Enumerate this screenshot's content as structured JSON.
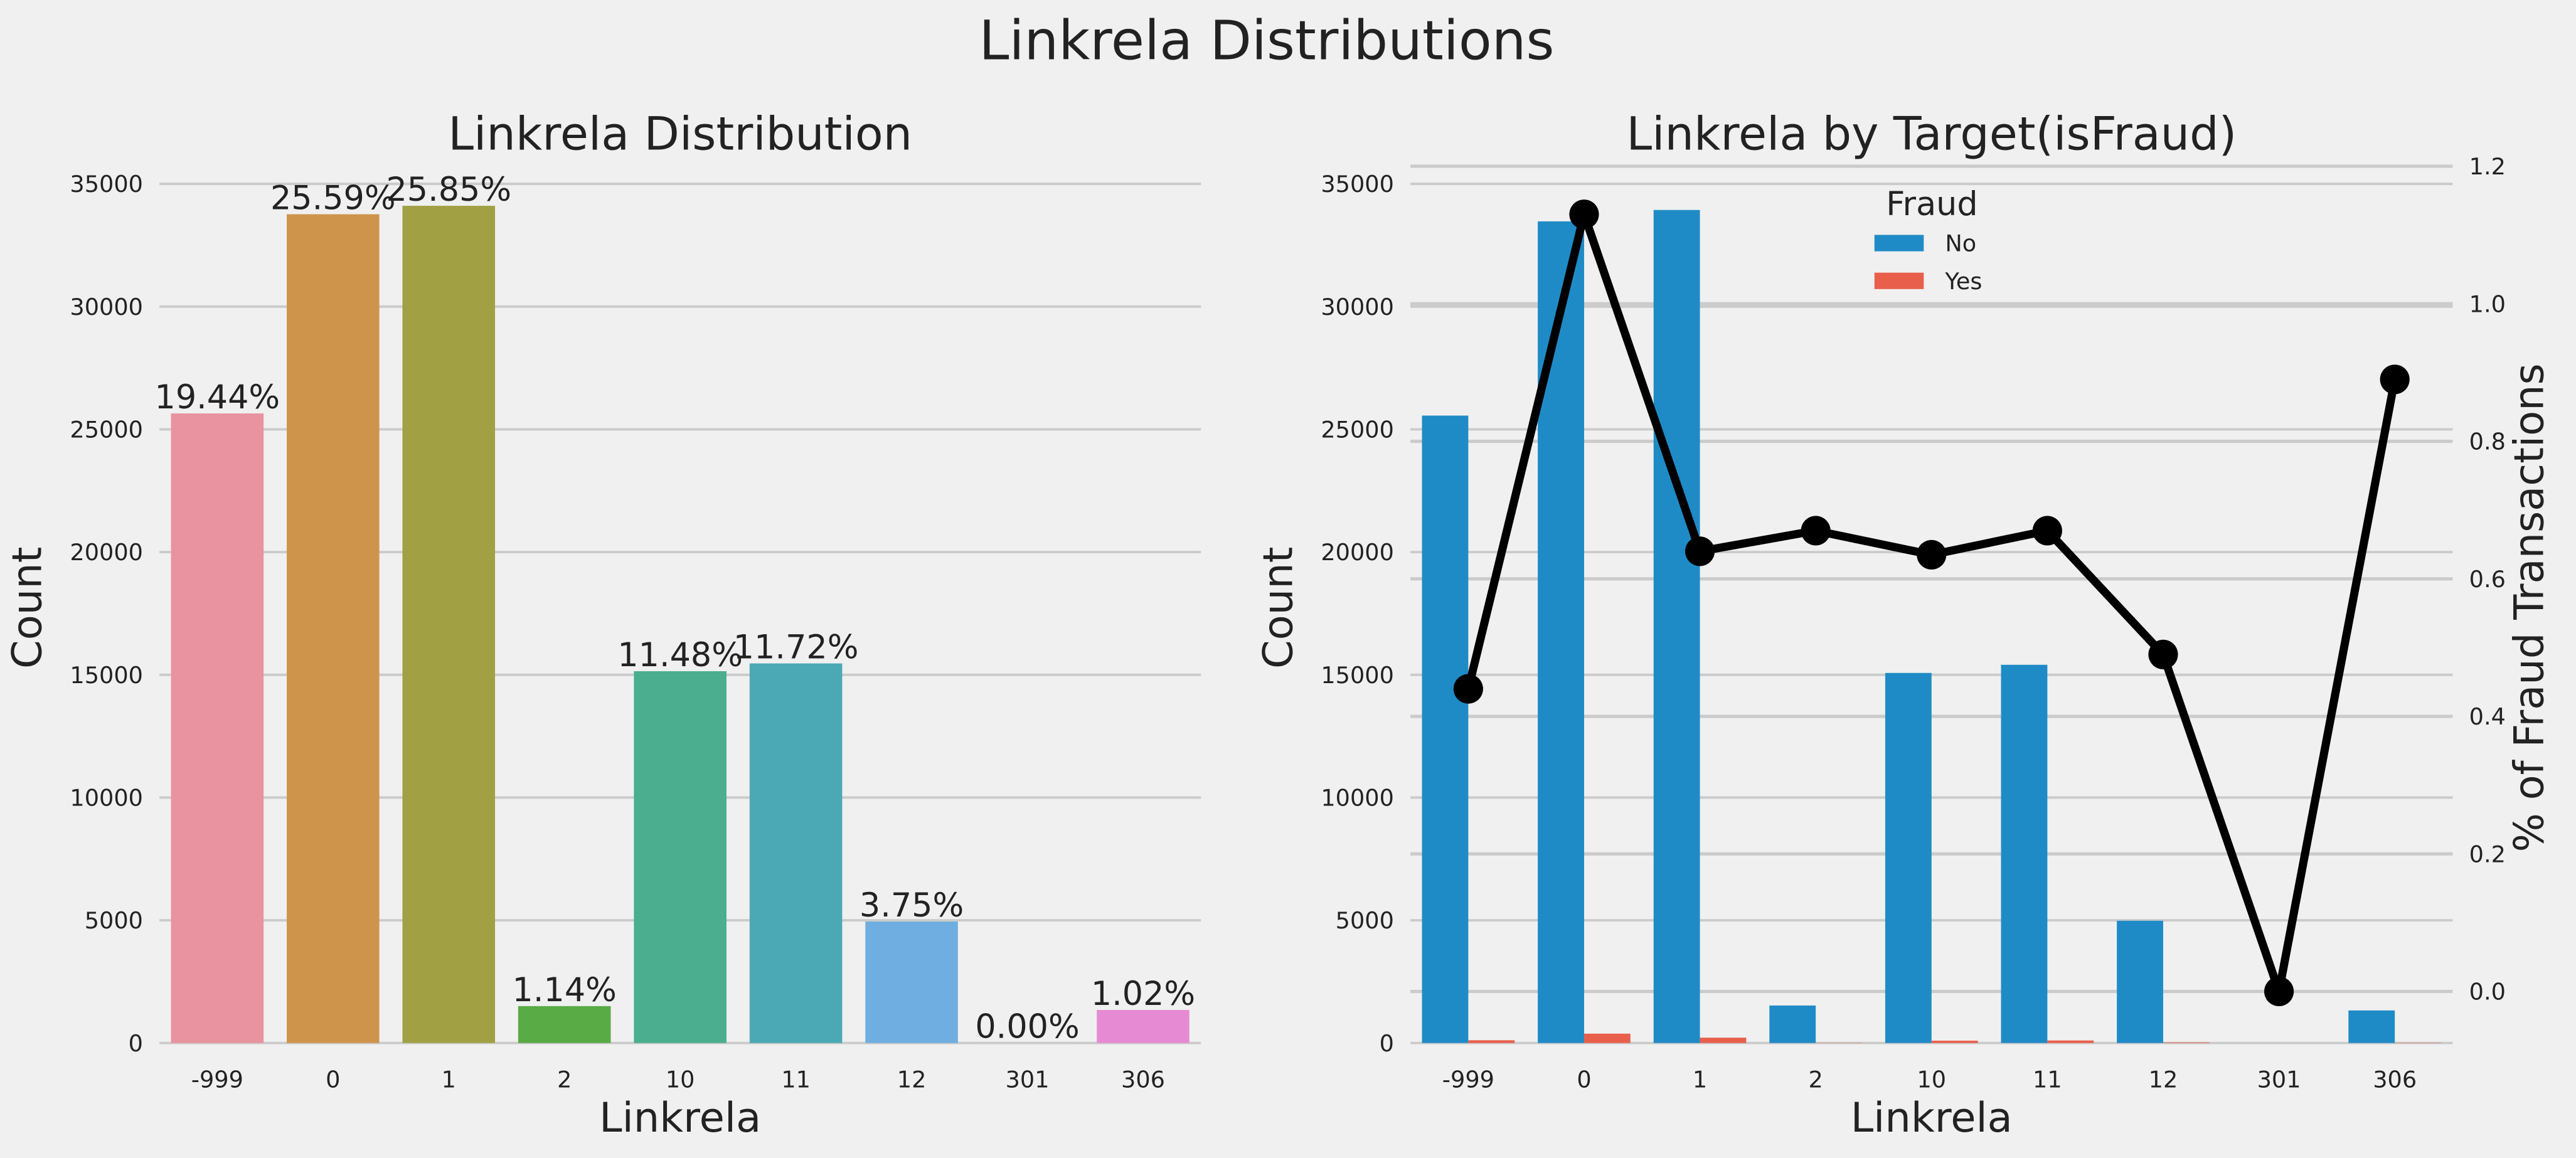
{
  "title": "Linkrela Distributions",
  "chart_data": [
    {
      "type": "bar",
      "title": "Linkrela Distribution",
      "xlabel": "Linkrela",
      "ylabel": "Count",
      "categories": [
        "-999",
        "0",
        "1",
        "2",
        "10",
        "11",
        "12",
        "301",
        "306"
      ],
      "values": [
        25649,
        33763,
        34107,
        1504,
        15147,
        15464,
        4948,
        3,
        1346
      ],
      "bar_labels": [
        "19.44%",
        "25.59%",
        "25.85%",
        "1.14%",
        "11.48%",
        "11.72%",
        "3.75%",
        "0.00%",
        "1.02%"
      ],
      "colors": [
        "#e8939f",
        "#cf944b",
        "#a1a043",
        "#58ab45",
        "#4aae8f",
        "#4ba9b5",
        "#6faee0",
        "#a69ee6",
        "#e68bd3"
      ],
      "ylim": [
        0,
        36000
      ],
      "yticks": [
        0,
        5000,
        10000,
        15000,
        20000,
        25000,
        30000,
        35000
      ],
      "grid": true
    },
    {
      "type": "bar_line",
      "title": "Linkrela by Target(isFraud)",
      "xlabel": "Linkrela",
      "ylabel": "Count",
      "y2label": "% of Fraud Transactions",
      "categories": [
        "-999",
        "0",
        "1",
        "2",
        "10",
        "11",
        "12",
        "301",
        "306"
      ],
      "legend_title": "Fraud",
      "series": [
        {
          "name": "No",
          "color": "#1f8bc6",
          "values": [
            25560,
            33473,
            33937,
            1528,
            15076,
            15408,
            4981,
            0,
            1328
          ]
        },
        {
          "name": "Yes",
          "color": "#e8604c",
          "values": [
            113,
            382,
            218,
            10,
            96,
            104,
            24,
            0,
            12
          ]
        }
      ],
      "line": {
        "color": "#000000",
        "axis": "y2",
        "values": [
          0.44,
          1.13,
          0.64,
          0.67,
          0.635,
          0.67,
          0.49,
          0,
          0.89
        ]
      },
      "ylim": [
        0,
        36000
      ],
      "yticks": [
        0,
        5000,
        10000,
        15000,
        20000,
        25000,
        30000,
        35000
      ],
      "y2lim": [
        -0.075,
        1.21
      ],
      "y2ticks": [
        {
          "value": 0,
          "label": "0.0"
        },
        {
          "value": 0.2,
          "label": "0.2"
        },
        {
          "value": 0.4,
          "label": "0.4"
        },
        {
          "value": 0.6,
          "label": "0.6"
        },
        {
          "value": 0.8,
          "label": "0.8"
        },
        {
          "value": 1,
          "label": "1.0"
        },
        {
          "value": 1.2,
          "label": "1.2"
        }
      ],
      "grid": true
    }
  ]
}
